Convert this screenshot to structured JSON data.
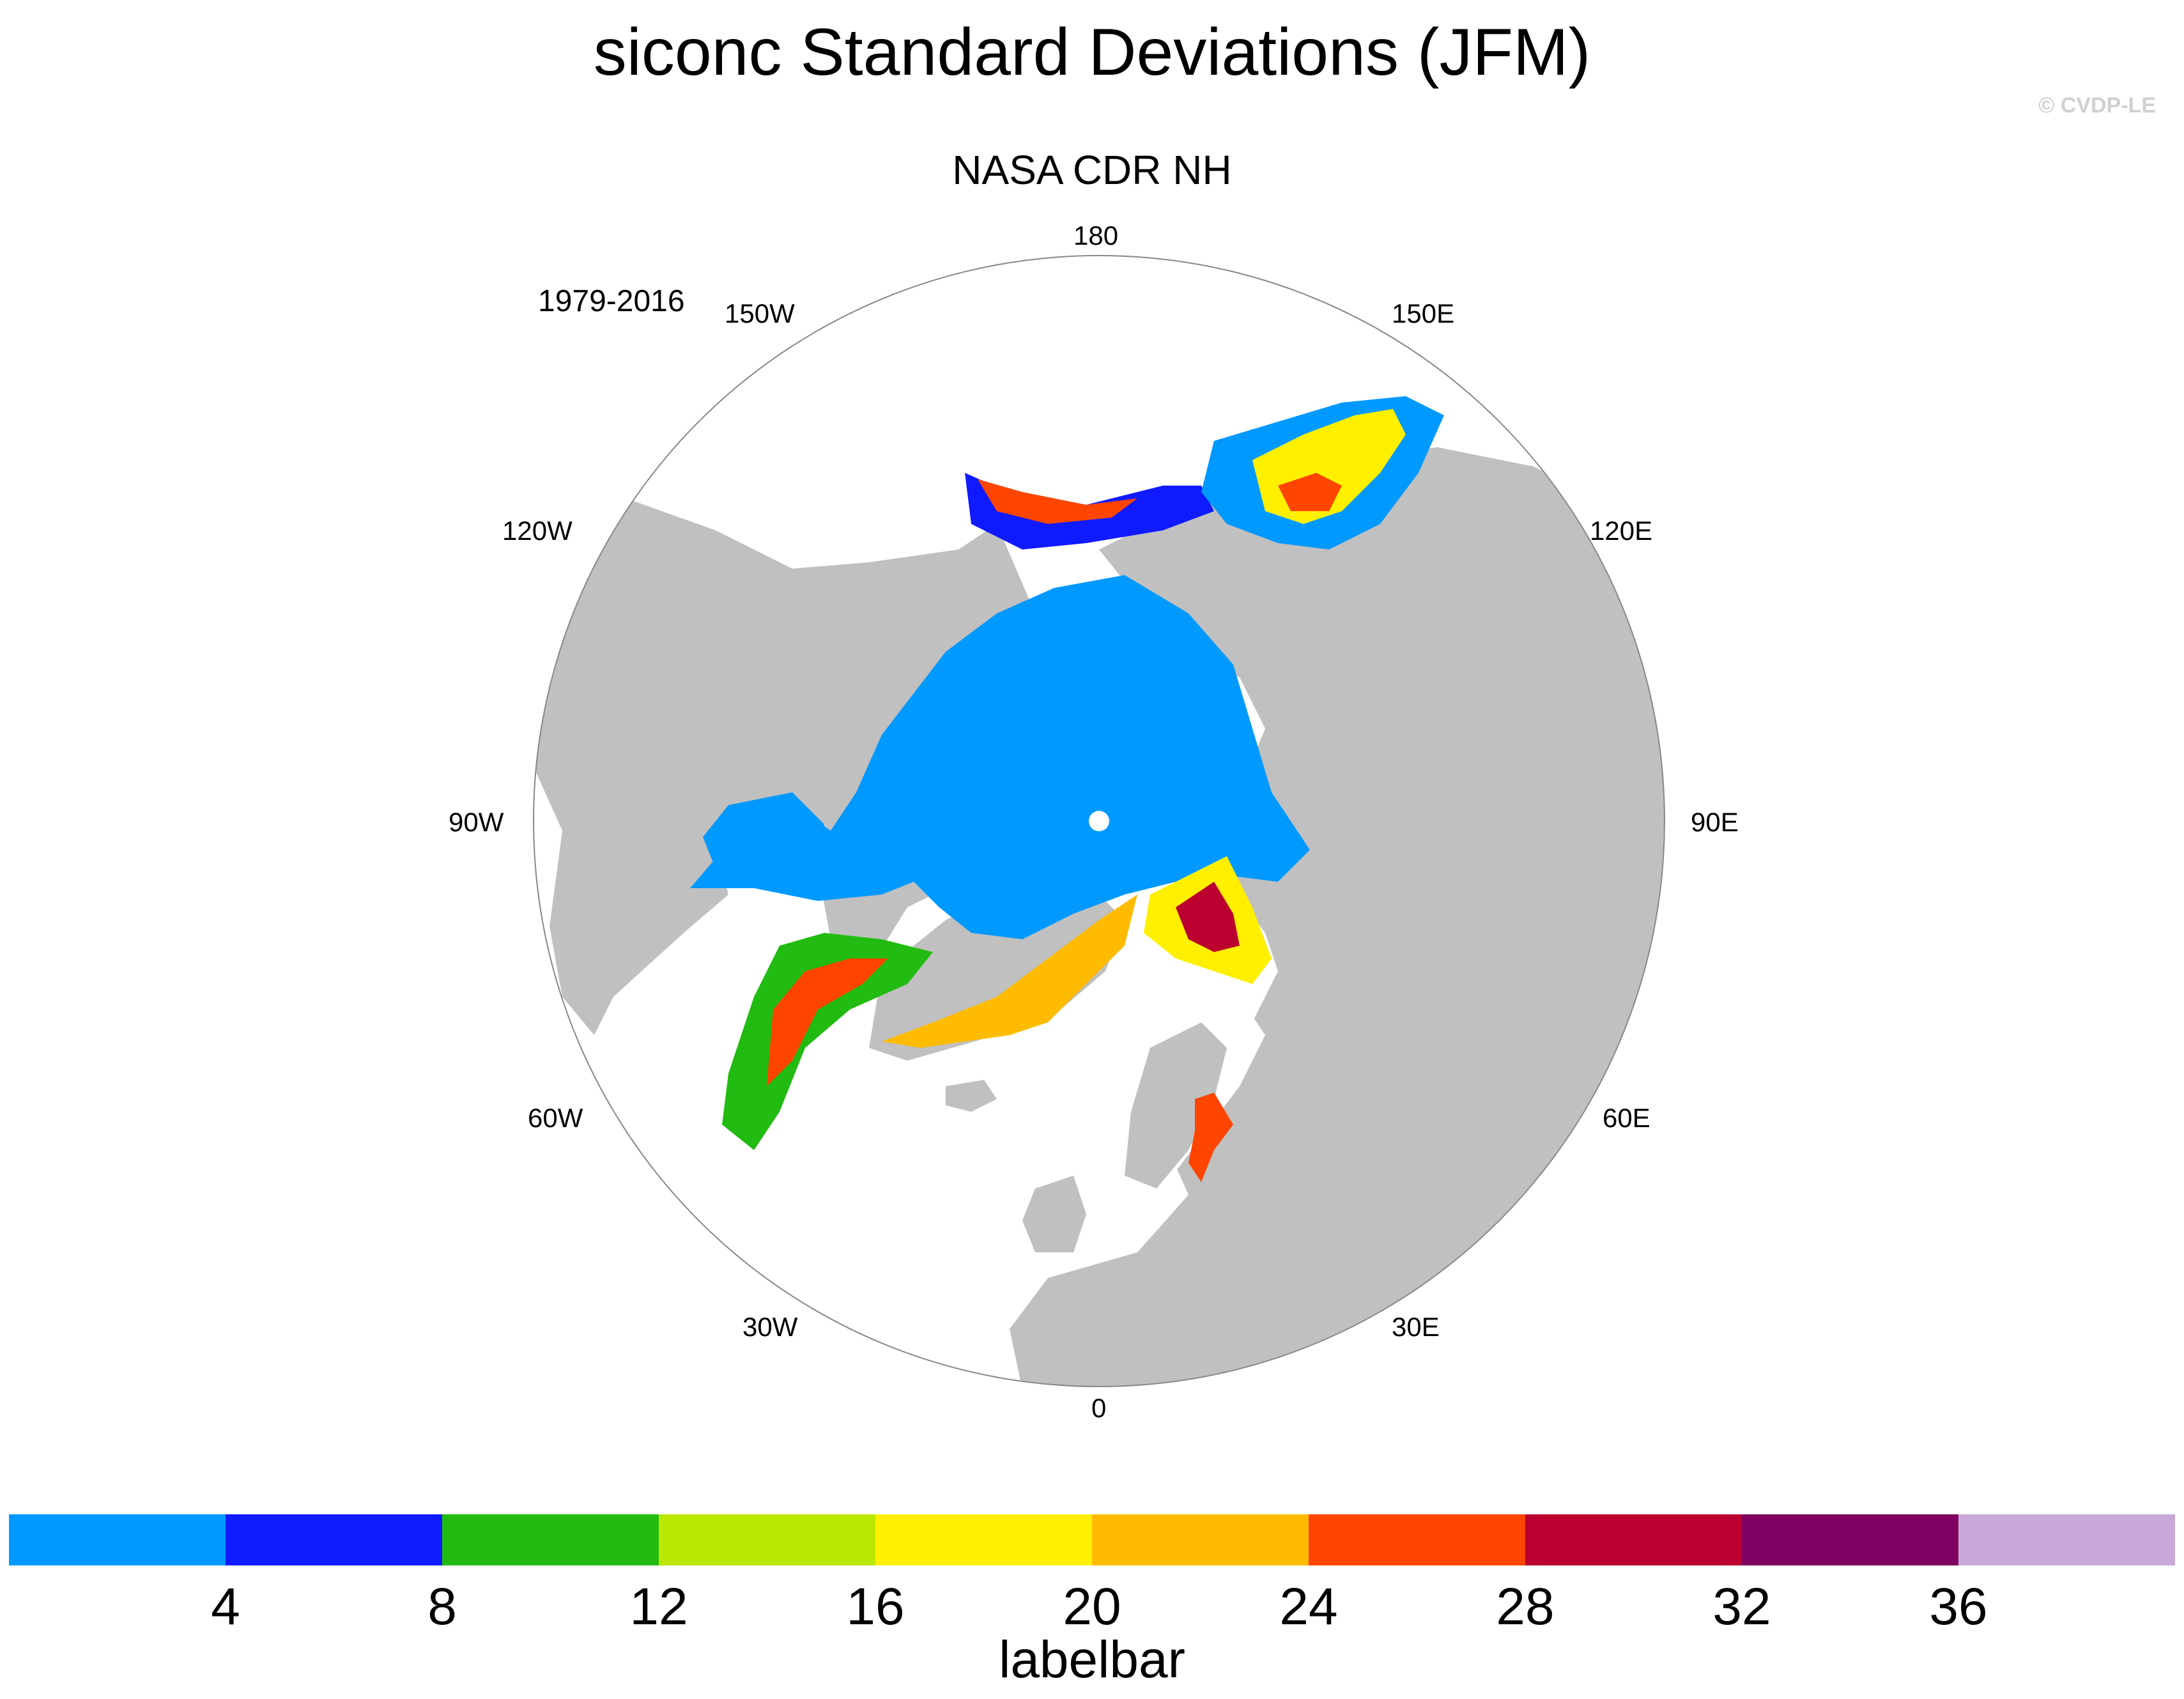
{
  "title": "siconc Standard Deviations (JFM)",
  "subtitle": "NASA CDR NH",
  "period": "1979-2016",
  "watermark": "© CVDP-LE",
  "map": {
    "projection": "north-polar-stereographic",
    "lon_labels": {
      "top": "180",
      "upper_left": "150W",
      "upper_right": "150E",
      "left_120": "120W",
      "right_120": "120E",
      "left_90": "90W",
      "right_90": "90E",
      "left_60": "60W",
      "right_60": "60E",
      "lower_left": "30W",
      "lower_right": "30E",
      "bottom": "0"
    },
    "colors": {
      "land": "#c0c0c0",
      "ocean": "#ffffff",
      "border": "#888888"
    }
  },
  "labelbar": {
    "title": "labelbar",
    "ticks": [
      "4",
      "8",
      "12",
      "16",
      "20",
      "24",
      "28",
      "32",
      "36"
    ],
    "colors": [
      "#0099ff",
      "#0f1aff",
      "#22bb11",
      "#bbe800",
      "#fff000",
      "#ffbb00",
      "#ff4500",
      "#bb0030",
      "#7f0060",
      "#c8a8d8"
    ]
  }
}
